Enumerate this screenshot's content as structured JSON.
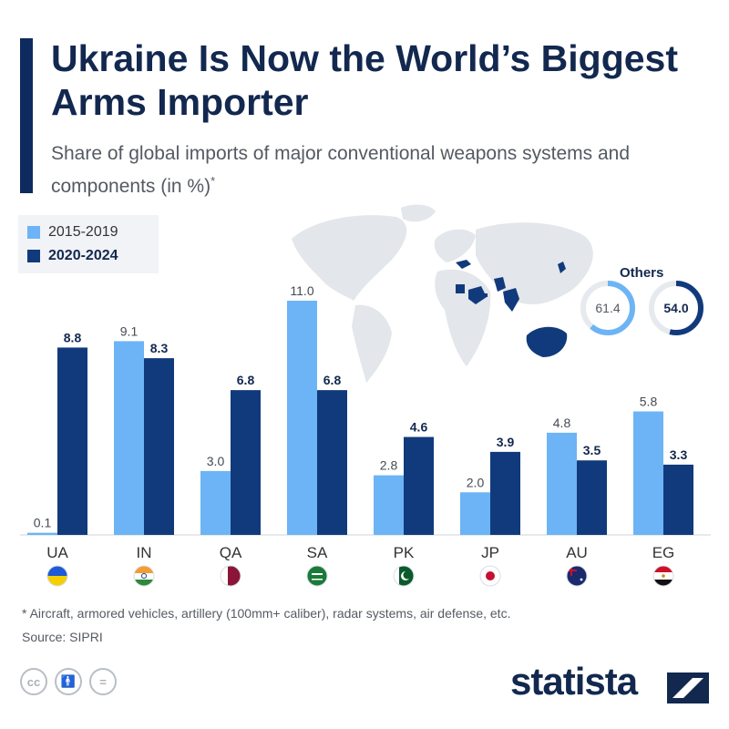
{
  "title": "Ukraine Is Now the World’s Biggest Arms Importer",
  "subtitle": "Share of global imports of major conventional weapons systems and components (in %)",
  "subtitle_marker": "*",
  "colors": {
    "period1": "#6cb4f5",
    "period2": "#113a7c",
    "title": "#12284f"
  },
  "legend": [
    {
      "label": "2015-2019",
      "color": "#6cb4f5"
    },
    {
      "label": "2020-2024",
      "color": "#113a7c"
    }
  ],
  "chart_data": {
    "type": "bar",
    "categories": [
      "UA",
      "IN",
      "QA",
      "SA",
      "PK",
      "JP",
      "AU",
      "EG"
    ],
    "flags": [
      "ukraine-flag",
      "india-flag",
      "qatar-flag",
      "saudi-arabia-flag",
      "pakistan-flag",
      "japan-flag",
      "australia-flag",
      "egypt-flag"
    ],
    "series": [
      {
        "name": "2015-2019",
        "values": [
          0.1,
          9.1,
          3.0,
          11.0,
          2.8,
          2.0,
          4.8,
          5.8
        ],
        "labels": [
          "0.1",
          "9.1",
          "3.0",
          "11.0",
          "2.8",
          "2.0",
          "4.8",
          "5.8"
        ]
      },
      {
        "name": "2020-2024",
        "values": [
          8.8,
          8.3,
          6.8,
          6.8,
          4.6,
          3.9,
          3.5,
          3.3
        ],
        "labels": [
          "8.8",
          "8.3",
          "6.8",
          "6.8",
          "4.6",
          "3.9",
          "3.5",
          "3.3"
        ]
      }
    ],
    "ylim": [
      0,
      11
    ],
    "others": {
      "title": "Others",
      "values": [
        61.4,
        54.0
      ],
      "labels": [
        "61.4",
        "54.0"
      ]
    }
  },
  "footnote": "* Aircraft, armored vehicles, artillery (100mm+ caliber), radar systems, air defense, etc.",
  "source": "Source: SIPRI",
  "brand": "statista",
  "license_icons": [
    "cc-icon",
    "by-icon",
    "nd-icon"
  ]
}
